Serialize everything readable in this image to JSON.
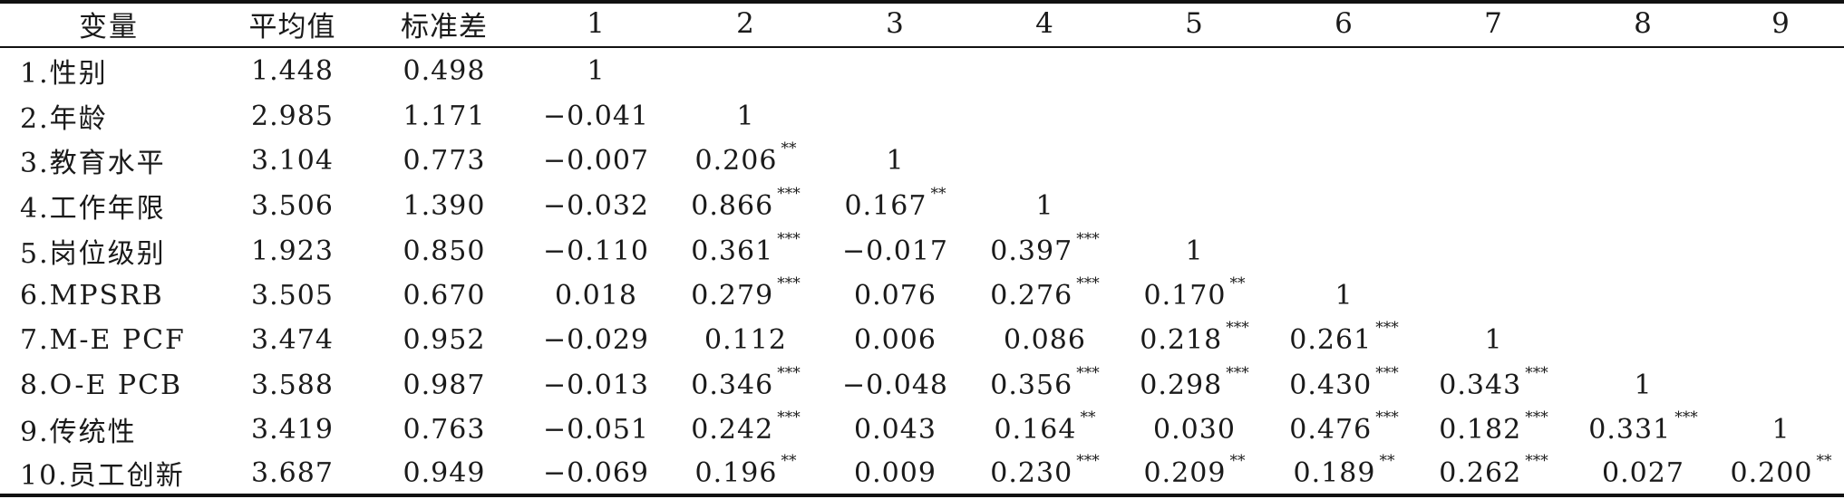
{
  "headers": [
    "变量",
    "平均值",
    "标准差",
    "1",
    "2",
    "3",
    "4",
    "5",
    "6",
    "7",
    "8",
    "9"
  ],
  "rows": [
    {
      "variable": "1.性别",
      "mean": "1.448",
      "sd": "0.498",
      "cells": [
        {
          "v": "1",
          "s": ""
        },
        {
          "v": "",
          "s": ""
        },
        {
          "v": "",
          "s": ""
        },
        {
          "v": "",
          "s": ""
        },
        {
          "v": "",
          "s": ""
        },
        {
          "v": "",
          "s": ""
        },
        {
          "v": "",
          "s": ""
        },
        {
          "v": "",
          "s": ""
        },
        {
          "v": "",
          "s": ""
        }
      ]
    },
    {
      "variable": "2.年龄",
      "mean": "2.985",
      "sd": "1.171",
      "cells": [
        {
          "v": "−0.041",
          "s": ""
        },
        {
          "v": "1",
          "s": ""
        },
        {
          "v": "",
          "s": ""
        },
        {
          "v": "",
          "s": ""
        },
        {
          "v": "",
          "s": ""
        },
        {
          "v": "",
          "s": ""
        },
        {
          "v": "",
          "s": ""
        },
        {
          "v": "",
          "s": ""
        },
        {
          "v": "",
          "s": ""
        }
      ]
    },
    {
      "variable": "3.教育水平",
      "mean": "3.104",
      "sd": "0.773",
      "cells": [
        {
          "v": "−0.007",
          "s": ""
        },
        {
          "v": "0.206",
          "s": "**"
        },
        {
          "v": "1",
          "s": ""
        },
        {
          "v": "",
          "s": ""
        },
        {
          "v": "",
          "s": ""
        },
        {
          "v": "",
          "s": ""
        },
        {
          "v": "",
          "s": ""
        },
        {
          "v": "",
          "s": ""
        },
        {
          "v": "",
          "s": ""
        }
      ]
    },
    {
      "variable": "4.工作年限",
      "mean": "3.506",
      "sd": "1.390",
      "cells": [
        {
          "v": "−0.032",
          "s": ""
        },
        {
          "v": "0.866",
          "s": "***"
        },
        {
          "v": "0.167",
          "s": "**"
        },
        {
          "v": "1",
          "s": ""
        },
        {
          "v": "",
          "s": ""
        },
        {
          "v": "",
          "s": ""
        },
        {
          "v": "",
          "s": ""
        },
        {
          "v": "",
          "s": ""
        },
        {
          "v": "",
          "s": ""
        }
      ]
    },
    {
      "variable": "5.岗位级别",
      "mean": "1.923",
      "sd": "0.850",
      "cells": [
        {
          "v": "−0.110",
          "s": ""
        },
        {
          "v": "0.361",
          "s": "***"
        },
        {
          "v": "−0.017",
          "s": ""
        },
        {
          "v": "0.397",
          "s": "***"
        },
        {
          "v": "1",
          "s": ""
        },
        {
          "v": "",
          "s": ""
        },
        {
          "v": "",
          "s": ""
        },
        {
          "v": "",
          "s": ""
        },
        {
          "v": "",
          "s": ""
        }
      ]
    },
    {
      "variable": "6.MPSRB",
      "mean": "3.505",
      "sd": "0.670",
      "cells": [
        {
          "v": "0.018",
          "s": ""
        },
        {
          "v": "0.279",
          "s": "***"
        },
        {
          "v": "0.076",
          "s": ""
        },
        {
          "v": "0.276",
          "s": "***"
        },
        {
          "v": "0.170",
          "s": "**"
        },
        {
          "v": "1",
          "s": ""
        },
        {
          "v": "",
          "s": ""
        },
        {
          "v": "",
          "s": ""
        },
        {
          "v": "",
          "s": ""
        }
      ]
    },
    {
      "variable": "7.M-E PCF",
      "mean": "3.474",
      "sd": "0.952",
      "cells": [
        {
          "v": "−0.029",
          "s": ""
        },
        {
          "v": "0.112",
          "s": ""
        },
        {
          "v": "0.006",
          "s": ""
        },
        {
          "v": "0.086",
          "s": ""
        },
        {
          "v": "0.218",
          "s": "***"
        },
        {
          "v": "0.261",
          "s": "***"
        },
        {
          "v": "1",
          "s": ""
        },
        {
          "v": "",
          "s": ""
        },
        {
          "v": "",
          "s": ""
        }
      ]
    },
    {
      "variable": "8.O-E PCB",
      "mean": "3.588",
      "sd": "0.987",
      "cells": [
        {
          "v": "−0.013",
          "s": ""
        },
        {
          "v": "0.346",
          "s": "***"
        },
        {
          "v": "−0.048",
          "s": ""
        },
        {
          "v": "0.356",
          "s": "***"
        },
        {
          "v": "0.298",
          "s": "***"
        },
        {
          "v": "0.430",
          "s": "***"
        },
        {
          "v": "0.343",
          "s": "***"
        },
        {
          "v": "1",
          "s": ""
        },
        {
          "v": "",
          "s": ""
        }
      ]
    },
    {
      "variable": "9.传统性",
      "mean": "3.419",
      "sd": "0.763",
      "cells": [
        {
          "v": "−0.051",
          "s": ""
        },
        {
          "v": "0.242",
          "s": "***"
        },
        {
          "v": "0.043",
          "s": ""
        },
        {
          "v": "0.164",
          "s": "**"
        },
        {
          "v": "0.030",
          "s": ""
        },
        {
          "v": "0.476",
          "s": "***"
        },
        {
          "v": "0.182",
          "s": "***"
        },
        {
          "v": "0.331",
          "s": "***"
        },
        {
          "v": "1",
          "s": ""
        }
      ]
    },
    {
      "variable": "10.员工创新",
      "mean": "3.687",
      "sd": "0.949",
      "cells": [
        {
          "v": "−0.069",
          "s": ""
        },
        {
          "v": "0.196",
          "s": "**"
        },
        {
          "v": "0.009",
          "s": ""
        },
        {
          "v": "0.230",
          "s": "***"
        },
        {
          "v": "0.209",
          "s": "**"
        },
        {
          "v": "0.189",
          "s": "**"
        },
        {
          "v": "0.262",
          "s": "***"
        },
        {
          "v": "0.027",
          "s": ""
        },
        {
          "v": "0.200",
          "s": "**"
        }
      ]
    }
  ]
}
